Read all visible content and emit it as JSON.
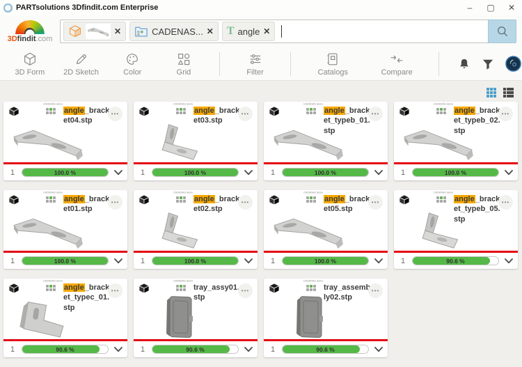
{
  "window": {
    "title": "PARTsolutions 3Dfindit.com Enterprise",
    "minimize": "–",
    "maximize": "▢",
    "close": "✕"
  },
  "logo": {
    "prefix": "3D",
    "name": "findit",
    "suffix": ".com"
  },
  "search": {
    "catalog_chip_label": "CADENAS...",
    "text_chip_glyph": "T",
    "text_chip_label": "angle",
    "input_value": ""
  },
  "toolbar": {
    "items": [
      {
        "label": "3D Form"
      },
      {
        "label": "2D Sketch"
      },
      {
        "label": "Color"
      },
      {
        "label": "Grid"
      },
      {
        "label": "Filter"
      },
      {
        "label": "Catalogs"
      },
      {
        "label": "Compare"
      }
    ]
  },
  "colors": {
    "highlight_orange": "#f6a800",
    "match_green": "#55b948",
    "divider_red": "#e30613",
    "search_button_blue": "#b7d7e6"
  },
  "results": {
    "catalog_label": "CADENAS demo",
    "menu_glyph": "•••",
    "cards": [
      {
        "highlight": "angle",
        "name_rest": "_bracket04.stp",
        "count": "1",
        "match_label": "100.0 %",
        "match_value": 100,
        "shape": "a"
      },
      {
        "highlight": "angle",
        "name_rest": "_bracket03.stp",
        "count": "1",
        "match_label": "100.0 %",
        "match_value": 100,
        "shape": "b"
      },
      {
        "highlight": "angle",
        "name_rest": "_bracket_typeb_01.stp",
        "count": "1",
        "match_label": "100.0 %",
        "match_value": 100,
        "shape": "a"
      },
      {
        "highlight": "angle",
        "name_rest": "_bracket_typeb_02.stp",
        "count": "1",
        "match_label": "100.0 %",
        "match_value": 100,
        "shape": "a"
      },
      {
        "highlight": "angle",
        "name_rest": "_bracket01.stp",
        "count": "1",
        "match_label": "100.0 %",
        "match_value": 100,
        "shape": "a"
      },
      {
        "highlight": "angle",
        "name_rest": "_bracket02.stp",
        "count": "1",
        "match_label": "100.0 %",
        "match_value": 100,
        "shape": "b"
      },
      {
        "highlight": "angle",
        "name_rest": "_bracket05.stp",
        "count": "1",
        "match_label": "100.0 %",
        "match_value": 100,
        "shape": "a"
      },
      {
        "highlight": "angle",
        "name_rest": "_bracket_typeb_05.stp",
        "count": "1",
        "match_label": "90.6 %",
        "match_value": 90.6,
        "shape": "b"
      },
      {
        "highlight": "angle",
        "name_rest": "_bracket_typec_01.stp",
        "count": "1",
        "match_label": "90.6 %",
        "match_value": 90.6,
        "shape": "c"
      },
      {
        "highlight": "",
        "name_rest": "tray_assy01.stp",
        "count": "1",
        "match_label": "90.6 %",
        "match_value": 90.6,
        "shape": "tray"
      },
      {
        "highlight": "",
        "name_rest": "tray_assembly02.stp",
        "count": "1",
        "match_label": "90.6 %",
        "match_value": 90.6,
        "shape": "tray"
      }
    ]
  }
}
